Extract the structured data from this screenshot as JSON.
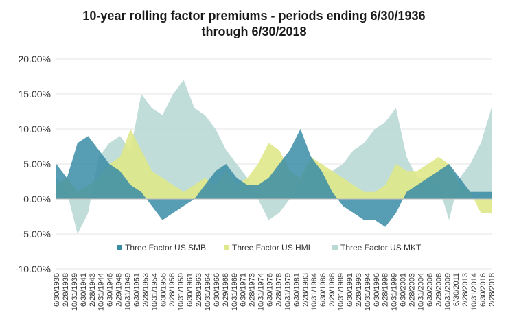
{
  "chart_data": {
    "type": "area",
    "title_line1": "10-year rolling factor premiums - periods ending 6/30/1936",
    "title_line2": "through 6/30/2018",
    "xlabel": "",
    "ylabel": "",
    "ylim": [
      -10,
      20
    ],
    "y_ticks": [
      {
        "value": 20,
        "label": "20.00%"
      },
      {
        "value": 15,
        "label": "15.00%"
      },
      {
        "value": 10,
        "label": "10.00%"
      },
      {
        "value": 5,
        "label": "5.00%"
      },
      {
        "value": 0,
        "label": "0.00%"
      },
      {
        "value": -5,
        "label": "-5.00%"
      },
      {
        "value": -10,
        "label": "-10.00%"
      }
    ],
    "x_tick_labels": [
      "6/30/1936",
      "2/28/1938",
      "10/31/1939",
      "6/30/1941",
      "2/28/1943",
      "10/31/1944",
      "6/30/1946",
      "2/29/1948",
      "10/31/1949",
      "6/30/1951",
      "2/28/1953",
      "10/31/1954",
      "6/30/1956",
      "2/28/1958",
      "10/31/1959",
      "6/30/1961",
      "2/28/1963",
      "10/31/1964",
      "6/30/1966",
      "2/29/1968",
      "10/31/1969",
      "6/30/1971",
      "2/28/1973",
      "10/31/1974",
      "6/30/1976",
      "2/28/1978",
      "10/31/1979",
      "6/30/1981",
      "2/28/1983",
      "10/31/1984",
      "6/30/1986",
      "2/29/1988",
      "10/31/1989",
      "6/30/1991",
      "2/28/1993",
      "10/31/1994",
      "6/30/1996",
      "2/28/1998",
      "10/31/1999",
      "6/30/2001",
      "2/28/2003",
      "10/31/2004",
      "6/30/2006",
      "2/29/2008",
      "10/31/2009",
      "6/30/2011",
      "2/28/2013",
      "10/31/2014",
      "6/30/2016",
      "2/28/2018"
    ],
    "x_years": [
      1936,
      1938,
      1940,
      1942,
      1944,
      1946,
      1948,
      1950,
      1952,
      1954,
      1956,
      1958,
      1960,
      1962,
      1964,
      1966,
      1968,
      1970,
      1972,
      1974,
      1976,
      1978,
      1980,
      1982,
      1984,
      1986,
      1988,
      1990,
      1992,
      1994,
      1996,
      1998,
      2000,
      2002,
      2004,
      2006,
      2008,
      2010,
      2012,
      2014,
      2016,
      2018
    ],
    "series": [
      {
        "name": "Three Factor US MKT",
        "color": "#b9d9d5",
        "values": [
          3,
          1,
          -5,
          -2,
          6,
          8,
          9,
          7,
          15,
          13,
          12,
          15,
          17,
          13,
          12,
          10,
          7,
          5,
          3,
          0,
          -3,
          -2,
          0,
          2,
          5,
          4,
          4,
          5,
          7,
          8,
          10,
          11,
          13,
          6,
          3,
          3,
          2,
          -3,
          3,
          5,
          8,
          13
        ]
      },
      {
        "name": "Three Factor US HML",
        "color": "#dfe88a",
        "values": [
          2,
          3,
          1,
          2,
          3,
          5,
          6,
          10,
          7,
          4,
          3,
          2,
          1,
          2,
          3,
          2,
          4,
          2,
          3,
          5,
          8,
          7,
          4,
          3,
          6,
          5,
          4,
          3,
          2,
          1,
          1,
          2,
          5,
          4,
          4,
          5,
          6,
          5,
          2,
          1,
          -2,
          -2
        ]
      },
      {
        "name": "Three Factor US SMB",
        "color": "#3a8ca6",
        "values": [
          5,
          3,
          8,
          9,
          7,
          5,
          4,
          2,
          1,
          -1,
          -3,
          -2,
          -1,
          0,
          2,
          4,
          5,
          3,
          2,
          2,
          3,
          5,
          7,
          10,
          6,
          4,
          1,
          -1,
          -2,
          -3,
          -3,
          -4,
          -2,
          1,
          2,
          3,
          4,
          5,
          3,
          1,
          1,
          1
        ]
      }
    ]
  }
}
